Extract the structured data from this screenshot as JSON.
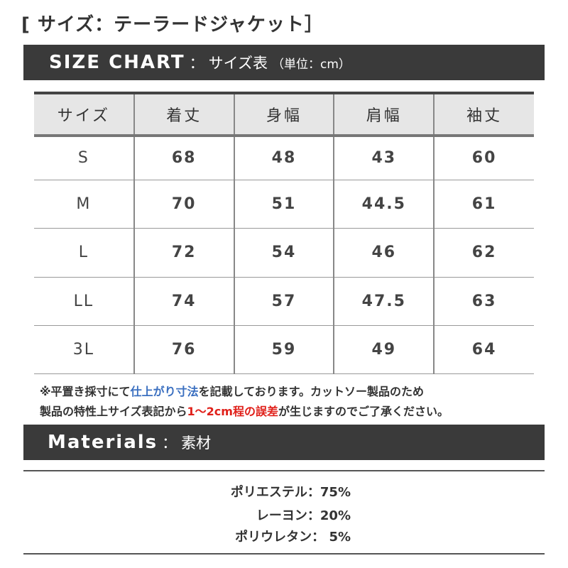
{
  "title": "[ サイズ：テーラードジャケット］",
  "size_chart": {
    "heading_en": "SIZE CHART",
    "heading_sep": "：",
    "heading_jp": "サイズ表",
    "unit": "（単位：cm）"
  },
  "table": {
    "headers": [
      "サイズ",
      "着丈",
      "身幅",
      "肩幅",
      "袖丈"
    ],
    "rows": [
      [
        "S",
        "68",
        "48",
        "43",
        "60"
      ],
      [
        "M",
        "70",
        "51",
        "44.5",
        "61"
      ],
      [
        "L",
        "72",
        "54",
        "46",
        "62"
      ],
      [
        "LL",
        "74",
        "57",
        "47.5",
        "63"
      ],
      [
        "3L",
        "76",
        "59",
        "49",
        "64"
      ]
    ]
  },
  "note": {
    "p1": "※平置き採寸にて",
    "p1_blue": "仕上がり寸法",
    "p2": "を記載しております。カットソー製品のため",
    "p3": "製品の特性上サイズ表記から",
    "p3_red": "1〜2cm程の誤差",
    "p4": "が生じますのでご了承ください。"
  },
  "materials": {
    "heading_en": "Materials",
    "heading_sep": "：",
    "heading_jp": "素材",
    "items": [
      "ポリエステル：75%",
      "レーヨン：20%",
      "ポリウレタン： 5%"
    ]
  },
  "colors": {
    "bar": "#3a3a3a",
    "header_bg": "#e6e6e6",
    "blue": "#3a6fc0",
    "red": "#e0201a"
  }
}
